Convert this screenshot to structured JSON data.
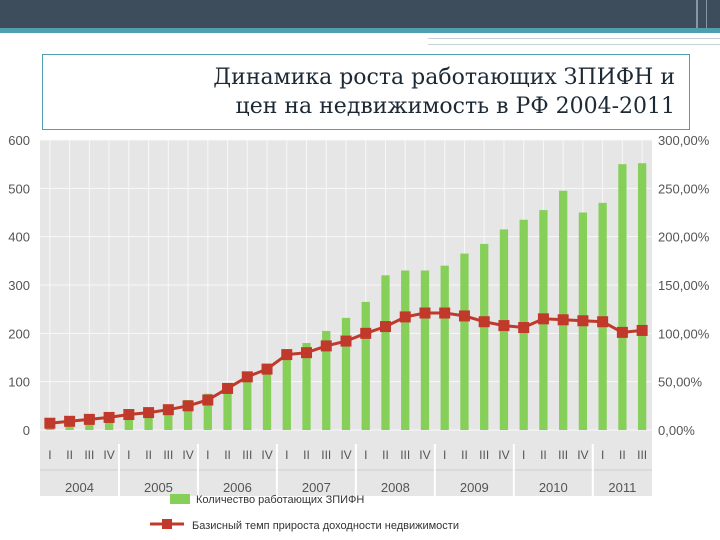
{
  "slide": {
    "title": "Динамика роста работающих ЗПИФН и\nцен на недвижимость в РФ 2004-2011"
  },
  "colors": {
    "bar": "#86d05a",
    "line": "#c0392b",
    "plot_bg": "#e6e6e6",
    "grid": "#f8f8f8"
  },
  "chart_data": {
    "type": "bar+line",
    "title": "",
    "xlabel": "",
    "ylabel_left": "",
    "ylabel_right": "",
    "left_ylim": [
      0,
      600
    ],
    "left_ticks": [
      "0",
      "100",
      "200",
      "300",
      "400",
      "500",
      "600"
    ],
    "right_ylim": [
      0,
      300
    ],
    "right_ticks": [
      "0,00%",
      "50,00%",
      "100,00%",
      "150,00%",
      "200,00%",
      "250,00%",
      "300,00%"
    ],
    "grid": true,
    "legend_position": "bottom",
    "quarters": [
      "I",
      "II",
      "III",
      "IV",
      "I",
      "II",
      "III",
      "IV",
      "I",
      "II",
      "III",
      "IV",
      "I",
      "II",
      "III",
      "IV",
      "I",
      "II",
      "III",
      "IV",
      "I",
      "II",
      "III",
      "IV",
      "I",
      "II",
      "III",
      "IV",
      "I",
      "II",
      "III"
    ],
    "years": [
      {
        "label": "2004",
        "quarters": 4
      },
      {
        "label": "2005",
        "quarters": 4
      },
      {
        "label": "2006",
        "quarters": 4
      },
      {
        "label": "2007",
        "quarters": 4
      },
      {
        "label": "2008",
        "quarters": 4
      },
      {
        "label": "2009",
        "quarters": 4
      },
      {
        "label": "2010",
        "quarters": 4
      },
      {
        "label": "2011",
        "quarters": 3
      }
    ],
    "series": [
      {
        "name": "Количество работающих ЗПИФН",
        "type": "bar",
        "axis": "left",
        "values": [
          8,
          12,
          18,
          25,
          35,
          45,
          52,
          62,
          75,
          90,
          115,
          135,
          155,
          180,
          205,
          232,
          265,
          320,
          330,
          330,
          340,
          365,
          385,
          415,
          435,
          455,
          495,
          450,
          470,
          550,
          552
        ]
      },
      {
        "name": "Базисный темп прироста доходности недвижимости",
        "type": "line",
        "axis": "right",
        "values": [
          7,
          9,
          11,
          13,
          16,
          18,
          21,
          25,
          31,
          43,
          55,
          63,
          78,
          80,
          87,
          92,
          100,
          107,
          117,
          121,
          121,
          118,
          112,
          108,
          106,
          115,
          114,
          113,
          112,
          101,
          103
        ]
      }
    ]
  }
}
